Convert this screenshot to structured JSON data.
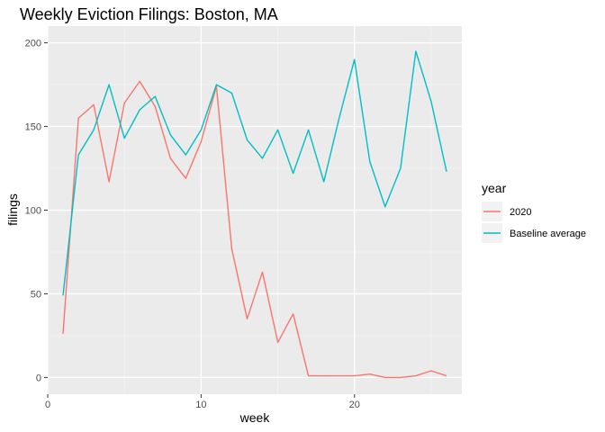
{
  "chart_data": {
    "type": "line",
    "title": "Weekly Eviction Filings: Boston, MA",
    "xlabel": "week",
    "ylabel": "filings",
    "xlim": [
      0,
      27
    ],
    "ylim": [
      -10,
      210
    ],
    "x_ticks": [
      0,
      10,
      20
    ],
    "y_ticks": [
      0,
      50,
      100,
      150,
      200
    ],
    "grid": true,
    "legend": {
      "title": "year",
      "position": "right"
    },
    "x": [
      1,
      2,
      3,
      4,
      5,
      6,
      7,
      8,
      9,
      10,
      11,
      12,
      13,
      14,
      15,
      16,
      17,
      18,
      19,
      20,
      21,
      22,
      23,
      24,
      25,
      26
    ],
    "series": [
      {
        "name": "2020",
        "color": "#F8766D",
        "values": [
          26,
          155,
          163,
          117,
          164,
          177,
          162,
          131,
          119,
          141,
          174,
          77,
          35,
          63,
          21,
          38,
          1,
          1,
          1,
          1,
          2,
          0,
          0,
          1,
          4,
          1
        ]
      },
      {
        "name": "Baseline average",
        "color": "#00BFC4",
        "values": [
          49,
          133,
          148,
          175,
          143,
          160,
          168,
          145,
          133,
          148,
          175,
          170,
          142,
          131,
          148,
          122,
          148,
          117,
          155,
          190,
          129,
          102,
          125,
          195,
          165,
          123
        ]
      }
    ]
  }
}
